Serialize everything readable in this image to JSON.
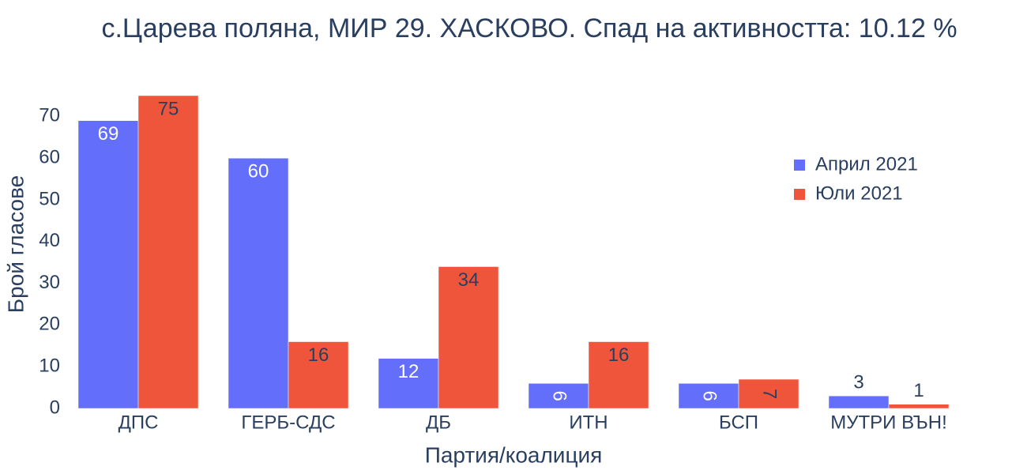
{
  "chart_data": {
    "type": "bar",
    "title": "с.Царева поляна, МИР 29. ХАСКОВО. Спад на активността: 10.12 %",
    "x_label": "Партия/коалиция",
    "y_label": "Брой гласове",
    "categories": [
      "ДПС",
      "ГЕРБ-СДС",
      "ДБ",
      "ИТН",
      "БСП",
      "МУТРИ ВЪН!"
    ],
    "series": [
      {
        "name": "Април 2021",
        "color": "#636efa",
        "values": [
          69,
          60,
          12,
          6,
          6,
          3
        ]
      },
      {
        "name": "Юли 2021",
        "color": "#ef553b",
        "values": [
          75,
          16,
          34,
          16,
          7,
          1
        ]
      }
    ],
    "ylim": [
      0,
      75
    ],
    "yticks": [
      0,
      10,
      20,
      30,
      40,
      50,
      60,
      70
    ],
    "grid": false,
    "legend": "right"
  }
}
